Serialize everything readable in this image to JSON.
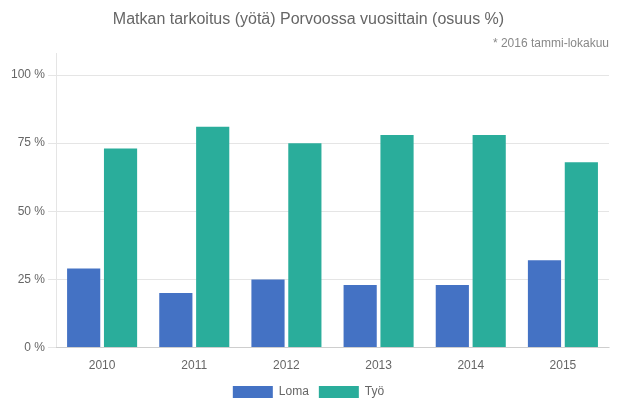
{
  "chart_data": {
    "type": "bar",
    "title": "Matkan tarkoitus (yötä) Porvoossa vuosittain (osuus %)",
    "annotation": "* 2016 tammi-lokakuu",
    "categories": [
      "2010",
      "2011",
      "2012",
      "2013",
      "2014",
      "2015"
    ],
    "series": [
      {
        "name": "Loma",
        "color": "#4472C4",
        "values": [
          29,
          20,
          25,
          23,
          23,
          32
        ]
      },
      {
        "name": "Työ",
        "color": "#2AAD9B",
        "values": [
          73,
          81,
          75,
          78,
          78,
          68
        ]
      }
    ],
    "ylim": [
      0,
      108
    ],
    "yticks": [
      {
        "value": 0,
        "label": "0 %"
      },
      {
        "value": 25,
        "label": "25 %"
      },
      {
        "value": 50,
        "label": "50 %"
      },
      {
        "value": 75,
        "label": "75 %"
      },
      {
        "value": 100,
        "label": "100 %"
      }
    ],
    "grid": true,
    "legend": "bottom"
  }
}
